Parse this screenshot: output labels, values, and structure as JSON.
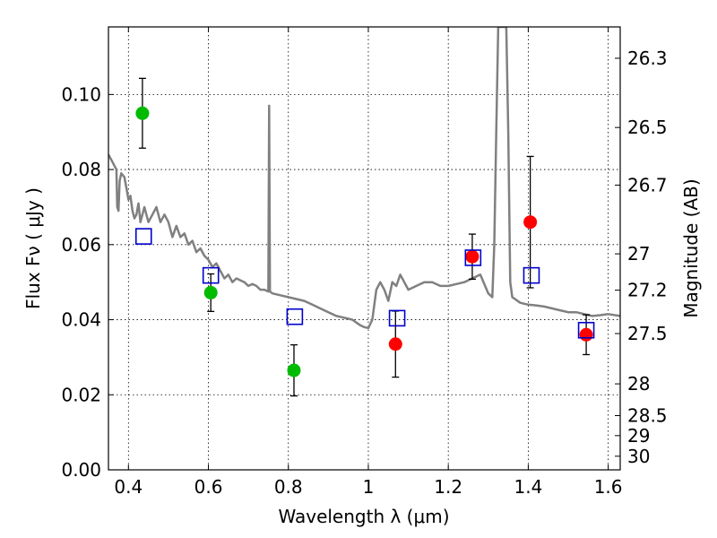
{
  "chart_data": {
    "type": "scatter",
    "xlabel": "Wavelength  λ (μm)",
    "ylabel": "Flux  Fν  ( μJy )",
    "ylabel2": "Magnitude (AB)",
    "xlim": [
      0.35,
      1.63
    ],
    "ylim": [
      0.0,
      0.118
    ],
    "grid": true,
    "x_ticks": [
      {
        "value": 0.4,
        "label": "0.4"
      },
      {
        "value": 0.6,
        "label": "0.6"
      },
      {
        "value": 0.8,
        "label": "0.8"
      },
      {
        "value": 1.0,
        "label": "1"
      },
      {
        "value": 1.2,
        "label": "1.2"
      },
      {
        "value": 1.4,
        "label": "1.4"
      },
      {
        "value": 1.6,
        "label": "1.6"
      }
    ],
    "y_ticks": [
      {
        "value": 0.0,
        "label": "0.00"
      },
      {
        "value": 0.02,
        "label": "0.02"
      },
      {
        "value": 0.04,
        "label": "0.04"
      },
      {
        "value": 0.06,
        "label": "0.06"
      },
      {
        "value": 0.08,
        "label": "0.08"
      },
      {
        "value": 0.1,
        "label": "0.10"
      }
    ],
    "magnitude_ticks": [
      {
        "mag": 26.3,
        "label": "26.3"
      },
      {
        "mag": 26.5,
        "label": "26.5"
      },
      {
        "mag": 26.7,
        "label": "26.7"
      },
      {
        "mag": 27.0,
        "label": "27"
      },
      {
        "mag": 27.2,
        "label": "27.2"
      },
      {
        "mag": 27.5,
        "label": "27.5"
      },
      {
        "mag": 28.0,
        "label": "28"
      },
      {
        "mag": 28.5,
        "label": "28.5"
      },
      {
        "mag": 29.0,
        "label": "29"
      },
      {
        "mag": 30.0,
        "label": "30"
      }
    ],
    "model_spectrum": {
      "color": "#808080",
      "points": [
        [
          0.35,
          0.084
        ],
        [
          0.355,
          0.083
        ],
        [
          0.36,
          0.082
        ],
        [
          0.365,
          0.081
        ],
        [
          0.37,
          0.08
        ],
        [
          0.372,
          0.07
        ],
        [
          0.375,
          0.069
        ],
        [
          0.378,
          0.077
        ],
        [
          0.382,
          0.079
        ],
        [
          0.39,
          0.078
        ],
        [
          0.395,
          0.075
        ],
        [
          0.4,
          0.072
        ],
        [
          0.405,
          0.073
        ],
        [
          0.41,
          0.069
        ],
        [
          0.415,
          0.067
        ],
        [
          0.42,
          0.068
        ],
        [
          0.425,
          0.071
        ],
        [
          0.43,
          0.066
        ],
        [
          0.435,
          0.068
        ],
        [
          0.44,
          0.07
        ],
        [
          0.45,
          0.066
        ],
        [
          0.46,
          0.068
        ],
        [
          0.47,
          0.07
        ],
        [
          0.48,
          0.066
        ],
        [
          0.49,
          0.068
        ],
        [
          0.5,
          0.066
        ],
        [
          0.51,
          0.062
        ],
        [
          0.52,
          0.065
        ],
        [
          0.53,
          0.062
        ],
        [
          0.54,
          0.063
        ],
        [
          0.55,
          0.06
        ],
        [
          0.56,
          0.061
        ],
        [
          0.57,
          0.058
        ],
        [
          0.58,
          0.059
        ],
        [
          0.59,
          0.057
        ],
        [
          0.6,
          0.056
        ],
        [
          0.61,
          0.054
        ],
        [
          0.62,
          0.055
        ],
        [
          0.63,
          0.053
        ],
        [
          0.64,
          0.051
        ],
        [
          0.65,
          0.052
        ],
        [
          0.66,
          0.05
        ],
        [
          0.67,
          0.051
        ],
        [
          0.68,
          0.0505
        ],
        [
          0.69,
          0.05
        ],
        [
          0.7,
          0.049
        ],
        [
          0.71,
          0.0495
        ],
        [
          0.72,
          0.049
        ],
        [
          0.73,
          0.048
        ],
        [
          0.74,
          0.048
        ],
        [
          0.75,
          0.0475
        ],
        [
          0.752,
          0.097
        ],
        [
          0.754,
          0.0475
        ],
        [
          0.76,
          0.047
        ],
        [
          0.78,
          0.0465
        ],
        [
          0.8,
          0.046
        ],
        [
          0.82,
          0.0455
        ],
        [
          0.84,
          0.045
        ],
        [
          0.86,
          0.044
        ],
        [
          0.88,
          0.043
        ],
        [
          0.9,
          0.042
        ],
        [
          0.92,
          0.041
        ],
        [
          0.94,
          0.0405
        ],
        [
          0.96,
          0.04
        ],
        [
          0.98,
          0.0385
        ],
        [
          0.99,
          0.038
        ],
        [
          1.0,
          0.0378
        ],
        [
          1.01,
          0.04
        ],
        [
          1.02,
          0.048
        ],
        [
          1.03,
          0.05
        ],
        [
          1.04,
          0.048
        ],
        [
          1.05,
          0.045
        ],
        [
          1.06,
          0.05
        ],
        [
          1.07,
          0.049
        ],
        [
          1.08,
          0.052
        ],
        [
          1.09,
          0.05
        ],
        [
          1.1,
          0.048
        ],
        [
          1.12,
          0.049
        ],
        [
          1.14,
          0.05
        ],
        [
          1.16,
          0.05
        ],
        [
          1.18,
          0.049
        ],
        [
          1.2,
          0.049
        ],
        [
          1.22,
          0.0495
        ],
        [
          1.24,
          0.05
        ],
        [
          1.26,
          0.051
        ],
        [
          1.28,
          0.052
        ],
        [
          1.3,
          0.047
        ],
        [
          1.31,
          0.046
        ],
        [
          1.315,
          0.06
        ],
        [
          1.32,
          0.09
        ],
        [
          1.325,
          0.118
        ],
        [
          1.335,
          0.118
        ],
        [
          1.34,
          0.118
        ],
        [
          1.345,
          0.118
        ],
        [
          1.35,
          0.09
        ],
        [
          1.355,
          0.05
        ],
        [
          1.36,
          0.046
        ],
        [
          1.38,
          0.0445
        ],
        [
          1.4,
          0.044
        ],
        [
          1.42,
          0.0438
        ],
        [
          1.44,
          0.0435
        ],
        [
          1.46,
          0.043
        ],
        [
          1.48,
          0.0425
        ],
        [
          1.5,
          0.042
        ],
        [
          1.52,
          0.042
        ],
        [
          1.54,
          0.0415
        ],
        [
          1.56,
          0.041
        ],
        [
          1.58,
          0.0412
        ],
        [
          1.6,
          0.0415
        ],
        [
          1.63,
          0.041
        ]
      ]
    },
    "series": [
      {
        "marker": "circle",
        "color": "#00bb00",
        "points": [
          {
            "x": 0.435,
            "y": 0.095,
            "yerr": 0.0093
          },
          {
            "x": 0.606,
            "y": 0.0472,
            "yerr": 0.005
          },
          {
            "x": 0.814,
            "y": 0.0265,
            "yerr": 0.0068
          }
        ]
      },
      {
        "marker": "circle",
        "color": "#ff0000",
        "points": [
          {
            "x": 1.068,
            "y": 0.0335,
            "yerr": 0.0088
          },
          {
            "x": 1.26,
            "y": 0.0568,
            "yerr": 0.006
          },
          {
            "x": 1.405,
            "y": 0.066,
            "yerr": 0.0175
          },
          {
            "x": 1.545,
            "y": 0.036,
            "yerr": 0.0053
          }
        ]
      },
      {
        "marker": "square",
        "color": "#0000cc",
        "points": [
          {
            "x": 0.438,
            "y": 0.0622
          },
          {
            "x": 0.606,
            "y": 0.0518
          },
          {
            "x": 0.816,
            "y": 0.0408
          },
          {
            "x": 1.072,
            "y": 0.0404
          },
          {
            "x": 1.262,
            "y": 0.0565
          },
          {
            "x": 1.408,
            "y": 0.0518
          },
          {
            "x": 1.545,
            "y": 0.0372
          }
        ]
      }
    ]
  }
}
